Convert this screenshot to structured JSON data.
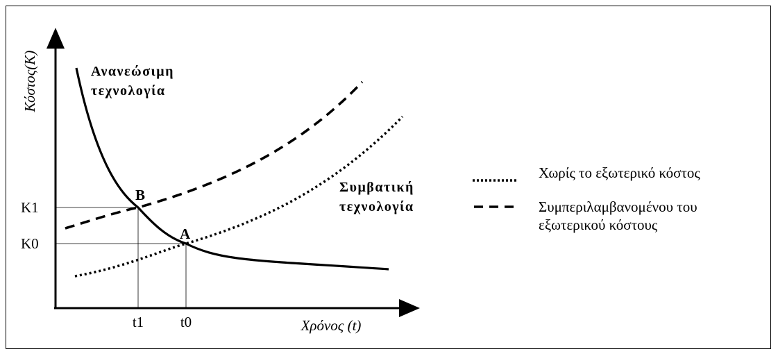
{
  "chart_data": {
    "type": "line",
    "xlabel": "Χρόνος (t)",
    "ylabel": "Κόστος(K)",
    "x_ticks": [
      "t1",
      "t0"
    ],
    "y_ticks": [
      "K1",
      "K0"
    ],
    "curve_labels": {
      "renewable": [
        "Ανανεώσιμη",
        "τεχνολογία"
      ],
      "conventional": [
        "Συμβατική",
        "τεχνολογία"
      ]
    },
    "points": [
      {
        "label": "B",
        "x": "t1",
        "y": "K1"
      },
      {
        "label": "A",
        "x": "t0",
        "y": "K0"
      }
    ],
    "series": [
      {
        "id": "renewable",
        "style": "solid"
      },
      {
        "id": "without_external_cost",
        "name": "Χωρίς το εξωτερικό κόστος",
        "style": "dotted"
      },
      {
        "id": "with_external_cost",
        "name": "Συμπεριλαμβανομένου του εξωτερικού κόστους",
        "style": "dashed"
      }
    ],
    "legend": {
      "placement": "right",
      "entries": [
        {
          "lines": [
            "Χωρίς το εξωτερικό κόστος"
          ],
          "style": "dotted"
        },
        {
          "lines": [
            "Συμπεριλαμβανομένου του",
            "εξωτερικού κόστους"
          ],
          "style": "dashed"
        }
      ]
    },
    "grid": false,
    "color": "#000000"
  }
}
